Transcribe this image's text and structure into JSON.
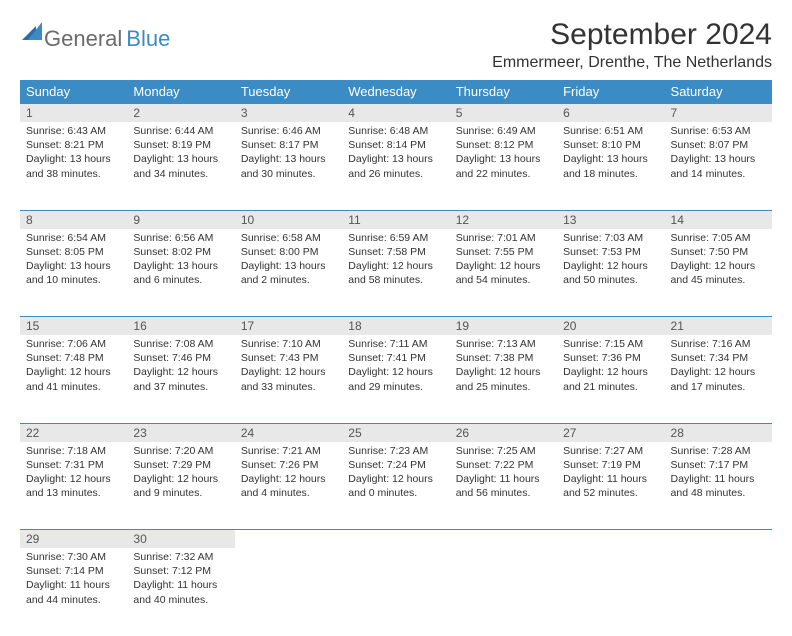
{
  "logo": {
    "general": "General",
    "blue": "Blue"
  },
  "title": "September 2024",
  "location": "Emmermeer, Drenthe, The Netherlands",
  "colors": {
    "header_bg": "#3b8bc4",
    "header_fg": "#ffffff",
    "daynum_bg": "#e8e8e8",
    "border": "#3b8bc4",
    "logo_gray": "#6b6b6b",
    "logo_blue": "#3b8bc4"
  },
  "weekdays": [
    "Sunday",
    "Monday",
    "Tuesday",
    "Wednesday",
    "Thursday",
    "Friday",
    "Saturday"
  ],
  "weeks": [
    [
      {
        "n": "1",
        "sr": "Sunrise: 6:43 AM",
        "ss": "Sunset: 8:21 PM",
        "d1": "Daylight: 13 hours",
        "d2": "and 38 minutes."
      },
      {
        "n": "2",
        "sr": "Sunrise: 6:44 AM",
        "ss": "Sunset: 8:19 PM",
        "d1": "Daylight: 13 hours",
        "d2": "and 34 minutes."
      },
      {
        "n": "3",
        "sr": "Sunrise: 6:46 AM",
        "ss": "Sunset: 8:17 PM",
        "d1": "Daylight: 13 hours",
        "d2": "and 30 minutes."
      },
      {
        "n": "4",
        "sr": "Sunrise: 6:48 AM",
        "ss": "Sunset: 8:14 PM",
        "d1": "Daylight: 13 hours",
        "d2": "and 26 minutes."
      },
      {
        "n": "5",
        "sr": "Sunrise: 6:49 AM",
        "ss": "Sunset: 8:12 PM",
        "d1": "Daylight: 13 hours",
        "d2": "and 22 minutes."
      },
      {
        "n": "6",
        "sr": "Sunrise: 6:51 AM",
        "ss": "Sunset: 8:10 PM",
        "d1": "Daylight: 13 hours",
        "d2": "and 18 minutes."
      },
      {
        "n": "7",
        "sr": "Sunrise: 6:53 AM",
        "ss": "Sunset: 8:07 PM",
        "d1": "Daylight: 13 hours",
        "d2": "and 14 minutes."
      }
    ],
    [
      {
        "n": "8",
        "sr": "Sunrise: 6:54 AM",
        "ss": "Sunset: 8:05 PM",
        "d1": "Daylight: 13 hours",
        "d2": "and 10 minutes."
      },
      {
        "n": "9",
        "sr": "Sunrise: 6:56 AM",
        "ss": "Sunset: 8:02 PM",
        "d1": "Daylight: 13 hours",
        "d2": "and 6 minutes."
      },
      {
        "n": "10",
        "sr": "Sunrise: 6:58 AM",
        "ss": "Sunset: 8:00 PM",
        "d1": "Daylight: 13 hours",
        "d2": "and 2 minutes."
      },
      {
        "n": "11",
        "sr": "Sunrise: 6:59 AM",
        "ss": "Sunset: 7:58 PM",
        "d1": "Daylight: 12 hours",
        "d2": "and 58 minutes."
      },
      {
        "n": "12",
        "sr": "Sunrise: 7:01 AM",
        "ss": "Sunset: 7:55 PM",
        "d1": "Daylight: 12 hours",
        "d2": "and 54 minutes."
      },
      {
        "n": "13",
        "sr": "Sunrise: 7:03 AM",
        "ss": "Sunset: 7:53 PM",
        "d1": "Daylight: 12 hours",
        "d2": "and 50 minutes."
      },
      {
        "n": "14",
        "sr": "Sunrise: 7:05 AM",
        "ss": "Sunset: 7:50 PM",
        "d1": "Daylight: 12 hours",
        "d2": "and 45 minutes."
      }
    ],
    [
      {
        "n": "15",
        "sr": "Sunrise: 7:06 AM",
        "ss": "Sunset: 7:48 PM",
        "d1": "Daylight: 12 hours",
        "d2": "and 41 minutes."
      },
      {
        "n": "16",
        "sr": "Sunrise: 7:08 AM",
        "ss": "Sunset: 7:46 PM",
        "d1": "Daylight: 12 hours",
        "d2": "and 37 minutes."
      },
      {
        "n": "17",
        "sr": "Sunrise: 7:10 AM",
        "ss": "Sunset: 7:43 PM",
        "d1": "Daylight: 12 hours",
        "d2": "and 33 minutes."
      },
      {
        "n": "18",
        "sr": "Sunrise: 7:11 AM",
        "ss": "Sunset: 7:41 PM",
        "d1": "Daylight: 12 hours",
        "d2": "and 29 minutes."
      },
      {
        "n": "19",
        "sr": "Sunrise: 7:13 AM",
        "ss": "Sunset: 7:38 PM",
        "d1": "Daylight: 12 hours",
        "d2": "and 25 minutes."
      },
      {
        "n": "20",
        "sr": "Sunrise: 7:15 AM",
        "ss": "Sunset: 7:36 PM",
        "d1": "Daylight: 12 hours",
        "d2": "and 21 minutes."
      },
      {
        "n": "21",
        "sr": "Sunrise: 7:16 AM",
        "ss": "Sunset: 7:34 PM",
        "d1": "Daylight: 12 hours",
        "d2": "and 17 minutes."
      }
    ],
    [
      {
        "n": "22",
        "sr": "Sunrise: 7:18 AM",
        "ss": "Sunset: 7:31 PM",
        "d1": "Daylight: 12 hours",
        "d2": "and 13 minutes."
      },
      {
        "n": "23",
        "sr": "Sunrise: 7:20 AM",
        "ss": "Sunset: 7:29 PM",
        "d1": "Daylight: 12 hours",
        "d2": "and 9 minutes."
      },
      {
        "n": "24",
        "sr": "Sunrise: 7:21 AM",
        "ss": "Sunset: 7:26 PM",
        "d1": "Daylight: 12 hours",
        "d2": "and 4 minutes."
      },
      {
        "n": "25",
        "sr": "Sunrise: 7:23 AM",
        "ss": "Sunset: 7:24 PM",
        "d1": "Daylight: 12 hours",
        "d2": "and 0 minutes."
      },
      {
        "n": "26",
        "sr": "Sunrise: 7:25 AM",
        "ss": "Sunset: 7:22 PM",
        "d1": "Daylight: 11 hours",
        "d2": "and 56 minutes."
      },
      {
        "n": "27",
        "sr": "Sunrise: 7:27 AM",
        "ss": "Sunset: 7:19 PM",
        "d1": "Daylight: 11 hours",
        "d2": "and 52 minutes."
      },
      {
        "n": "28",
        "sr": "Sunrise: 7:28 AM",
        "ss": "Sunset: 7:17 PM",
        "d1": "Daylight: 11 hours",
        "d2": "and 48 minutes."
      }
    ],
    [
      {
        "n": "29",
        "sr": "Sunrise: 7:30 AM",
        "ss": "Sunset: 7:14 PM",
        "d1": "Daylight: 11 hours",
        "d2": "and 44 minutes."
      },
      {
        "n": "30",
        "sr": "Sunrise: 7:32 AM",
        "ss": "Sunset: 7:12 PM",
        "d1": "Daylight: 11 hours",
        "d2": "and 40 minutes."
      },
      null,
      null,
      null,
      null,
      null
    ]
  ]
}
